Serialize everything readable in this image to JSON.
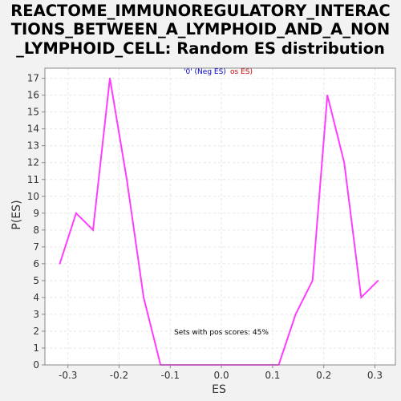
{
  "chart_data": {
    "type": "line",
    "title_lines": [
      "REACTOME_IMMUNOREGULATORY_INTERAC",
      "TIONS_BETWEEN_A_LYMPHOID_AND_A_NON",
      "_LYMPHOID_CELL: Random ES distribution"
    ],
    "xlabel": "ES",
    "ylabel": "P(ES)",
    "xlim": [
      -0.345,
      0.34
    ],
    "ylim": [
      0,
      17.6
    ],
    "xticks": [
      -0.3,
      -0.2,
      -0.1,
      0.0,
      0.1,
      0.2,
      0.3
    ],
    "xtick_labels": [
      "-0.3",
      "-0.2",
      "-0.1",
      "0.0",
      "0.1",
      "0.2",
      "0.3"
    ],
    "yticks": [
      0,
      1,
      2,
      3,
      4,
      5,
      6,
      7,
      8,
      9,
      10,
      11,
      12,
      13,
      14,
      15,
      16,
      17
    ],
    "grid": true,
    "series": [
      {
        "color": "#ff3dff",
        "x": [
          -0.316,
          -0.284,
          -0.251,
          -0.218,
          -0.185,
          -0.152,
          -0.119,
          -0.086,
          -0.053,
          -0.02,
          0.013,
          0.046,
          0.079,
          0.112,
          0.145,
          0.178,
          0.207,
          0.24,
          0.273,
          0.306
        ],
        "y": [
          6,
          9,
          8,
          17,
          11,
          4,
          0,
          0,
          0,
          0,
          0,
          0,
          0,
          0,
          3,
          5,
          16,
          12,
          4,
          5
        ]
      }
    ],
    "legend": {
      "placement": "top-center",
      "neg_text": "'0' (Neg ES)",
      "neg_color": "#0000cc",
      "pos_text": "os ES)",
      "pos_color": "#cc0000"
    },
    "annotation": "Sets with pos scores: 45%"
  }
}
